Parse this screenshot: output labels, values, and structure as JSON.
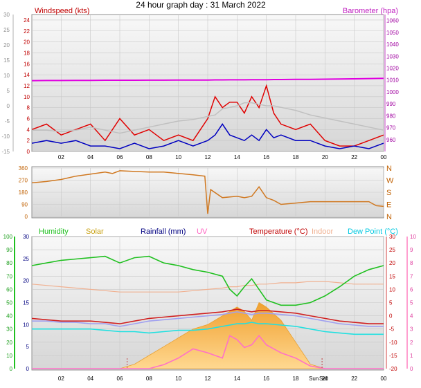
{
  "title": "24 hour graph day : 31 March 2022",
  "x_ticks": [
    "02",
    "04",
    "06",
    "08",
    "10",
    "12",
    "14",
    "16",
    "18",
    "20",
    "22",
    "00"
  ],
  "chart_data": [
    {
      "type": "line",
      "panel": "wind_pressure",
      "left_label": "Windspeed (kts)",
      "right_label": "Barometer (hpa)",
      "left_axis": {
        "ticks": [
          0,
          2,
          4,
          6,
          8,
          10,
          12,
          14,
          16,
          18,
          20,
          22,
          24
        ],
        "range": [
          0,
          25
        ]
      },
      "outer_left_axis": {
        "ticks": [
          -15,
          -10,
          -5,
          0,
          5,
          10,
          15,
          20,
          25,
          30
        ],
        "range": [
          -15,
          30
        ]
      },
      "right_axis": {
        "ticks": [
          980,
          990,
          1000,
          1010,
          1020,
          1030,
          1040,
          1050,
          1060
        ],
        "range": [
          950,
          1065
        ]
      },
      "right_axis_extra_ticks": [
        960,
        970
      ],
      "x_hours": [
        0,
        1,
        2,
        3,
        4,
        5,
        6,
        7,
        8,
        9,
        10,
        11,
        12,
        12.5,
        13,
        13.5,
        14,
        14.5,
        15,
        15.5,
        16,
        16.5,
        17,
        18,
        19,
        20,
        21,
        22,
        23,
        24
      ],
      "series": [
        {
          "key": "barometer",
          "color": "#e000e0",
          "axis": "right",
          "values": [
            1009.5,
            1009.6,
            1009.6,
            1009.7,
            1009.7,
            1009.8,
            1009.8,
            1009.8,
            1009.9,
            1009.9,
            1010.0,
            1010.0,
            1010.0,
            1010.1,
            1010.1,
            1010.2,
            1010.2,
            1010.2,
            1010.3,
            1010.3,
            1010.3,
            1010.4,
            1010.4,
            1010.5,
            1010.6,
            1010.7,
            1010.8,
            1011.0,
            1011.2,
            1011.4
          ]
        },
        {
          "key": "gust",
          "color": "#e00000",
          "axis": "left",
          "values": [
            4,
            5,
            3,
            4,
            5,
            2,
            6,
            3,
            4,
            2,
            3,
            2,
            6,
            10,
            8,
            9,
            9,
            7,
            10,
            8,
            12,
            7,
            5,
            4,
            5,
            2,
            1,
            1,
            2,
            3
          ]
        },
        {
          "key": "average",
          "color": "#0000c0",
          "axis": "left",
          "values": [
            1.5,
            2,
            1.5,
            2,
            1,
            1,
            0.5,
            1.5,
            0.5,
            1,
            2,
            1,
            2,
            3,
            5,
            3,
            2.5,
            2,
            3,
            2,
            4,
            2.5,
            3,
            2,
            2,
            1,
            0.5,
            1,
            0.5,
            1.5
          ]
        },
        {
          "key": "outer_temp_trace",
          "color": "#c0c0c0",
          "axis": "outer_left",
          "values": [
            -8,
            -8,
            -8.5,
            -8,
            -7,
            -8,
            -9,
            -8,
            -7,
            -6,
            -5,
            -4.5,
            -3.5,
            -3,
            -1,
            -0.5,
            0,
            1,
            1,
            0.5,
            0,
            0,
            -0.5,
            -1.5,
            -3,
            -4,
            -5,
            -6,
            -7,
            -8
          ]
        }
      ]
    },
    {
      "type": "line",
      "panel": "wind_direction",
      "left_axis": {
        "ticks": [
          0,
          90,
          180,
          270,
          360
        ],
        "range": [
          0,
          360
        ]
      },
      "right_labels": [
        "N",
        "W",
        "S",
        "E",
        "N"
      ],
      "color": "#d07820",
      "x_hours": [
        0,
        1,
        2,
        3,
        4,
        5,
        5.5,
        6,
        7,
        8,
        9,
        10,
        11,
        11.8,
        12,
        12.2,
        13,
        14,
        14.5,
        15,
        15.5,
        16,
        16.5,
        17,
        18,
        19,
        20,
        21,
        22,
        23,
        23.5,
        24
      ],
      "values": [
        250,
        260,
        275,
        300,
        315,
        330,
        320,
        340,
        335,
        330,
        330,
        320,
        310,
        300,
        20,
        200,
        140,
        150,
        140,
        150,
        220,
        140,
        120,
        90,
        100,
        110,
        110,
        110,
        110,
        110,
        80,
        75
      ]
    },
    {
      "type": "line",
      "panel": "temperature_humidity",
      "legend": [
        {
          "label": "Humidity",
          "color": "#20c020"
        },
        {
          "label": "Solar",
          "color": "#c8a010"
        },
        {
          "label": "Rainfall (mm)",
          "color": "#000080"
        },
        {
          "label": "UV",
          "color": "#ff60c0"
        },
        {
          "label": "Temperature (°C)",
          "color": "#c00000"
        },
        {
          "label": "Indoor",
          "color": "#f0b090"
        },
        {
          "label": "Dew Point (°C)",
          "color": "#00c8e0"
        }
      ],
      "humidity_axis": {
        "ticks": [
          0,
          10,
          20,
          30,
          40,
          50,
          60,
          70,
          80,
          90,
          100
        ],
        "range": [
          0,
          100
        ]
      },
      "rain_axis": {
        "ticks": [
          0,
          5,
          10,
          15,
          20,
          25,
          30
        ],
        "range": [
          0,
          30
        ]
      },
      "temp_axis": {
        "ticks": [
          -20,
          -15,
          -10,
          -5,
          0,
          5,
          10,
          15,
          20,
          25,
          30
        ],
        "range": [
          -20,
          30
        ]
      },
      "uv_axis": {
        "ticks": [
          0,
          1,
          2,
          3,
          4,
          5,
          6,
          7,
          8,
          9,
          10
        ],
        "range": [
          0,
          10
        ]
      },
      "sun_markers": [
        "Sun",
        "Set"
      ],
      "x_hours": [
        0,
        1,
        2,
        3,
        4,
        5,
        6,
        7,
        8,
        9,
        10,
        11,
        12,
        13,
        13.5,
        14,
        14.5,
        15,
        15.5,
        16,
        17,
        18,
        19,
        20,
        21,
        22,
        23,
        24
      ],
      "series": [
        {
          "key": "humidity",
          "color": "#20c020",
          "axis": "humidity",
          "values": [
            78,
            80,
            82,
            83,
            84,
            85,
            80,
            84,
            85,
            80,
            78,
            75,
            73,
            70,
            60,
            55,
            62,
            68,
            60,
            52,
            48,
            48,
            50,
            55,
            62,
            70,
            75,
            78
          ]
        },
        {
          "key": "temperature",
          "color": "#d02020",
          "axis": "temp",
          "values": [
            -1,
            -1.5,
            -2,
            -2,
            -2,
            -2.5,
            -3,
            -2,
            -1,
            -0.5,
            0,
            0.5,
            1,
            1.5,
            2,
            2.5,
            2,
            1.5,
            2,
            2,
            1.5,
            1,
            0,
            -1,
            -2,
            -2.5,
            -3,
            -3
          ]
        },
        {
          "key": "indoor",
          "color": "#f0b090",
          "axis": "temp",
          "values": [
            12,
            11.5,
            11,
            10.5,
            10,
            9.5,
            9,
            9,
            9,
            9,
            9,
            9.5,
            10,
            10.5,
            11,
            11,
            11.5,
            11.5,
            12,
            12,
            12.5,
            12.5,
            13,
            13,
            12.5,
            12,
            12,
            12
          ]
        },
        {
          "key": "dew_point",
          "color": "#20e0e0",
          "axis": "temp",
          "values": [
            -5,
            -5,
            -5,
            -5,
            -5,
            -5.5,
            -6,
            -6,
            -6.5,
            -6,
            -5.5,
            -5.5,
            -5,
            -4,
            -3.5,
            -3,
            -3,
            -2.5,
            -3,
            -3,
            -3.5,
            -4,
            -5,
            -6,
            -6.5,
            -7,
            -7,
            -7
          ]
        },
        {
          "key": "rain_lavender",
          "color": "#a0a0f0",
          "axis": "temp",
          "values": [
            -2,
            -2,
            -2.5,
            -2.5,
            -3,
            -3,
            -4,
            -3,
            -2,
            -1.5,
            -1,
            -0.5,
            0,
            0.5,
            1,
            1.5,
            1,
            0.5,
            1,
            1,
            0.5,
            0,
            -1,
            -2,
            -3,
            -3.5,
            -4,
            -4
          ]
        },
        {
          "key": "uv",
          "color": "#ff70c8",
          "axis": "uv",
          "values": [
            0,
            0,
            0,
            0,
            0,
            0,
            0,
            0,
            0,
            0.3,
            0.8,
            1.5,
            1.2,
            0.8,
            2.5,
            2.2,
            1.6,
            1.8,
            2.5,
            1.8,
            1.2,
            0.8,
            0.2,
            0,
            0,
            0,
            0,
            0
          ]
        },
        {
          "key": "solar",
          "color": "#f8b040",
          "axis": "rain",
          "values": [
            0,
            0,
            0,
            0,
            0,
            0,
            0,
            1,
            3,
            5,
            7,
            9,
            10,
            12,
            13,
            14,
            13,
            11,
            15,
            14,
            11,
            6,
            1,
            0,
            0,
            0,
            0,
            0
          ]
        }
      ]
    }
  ]
}
